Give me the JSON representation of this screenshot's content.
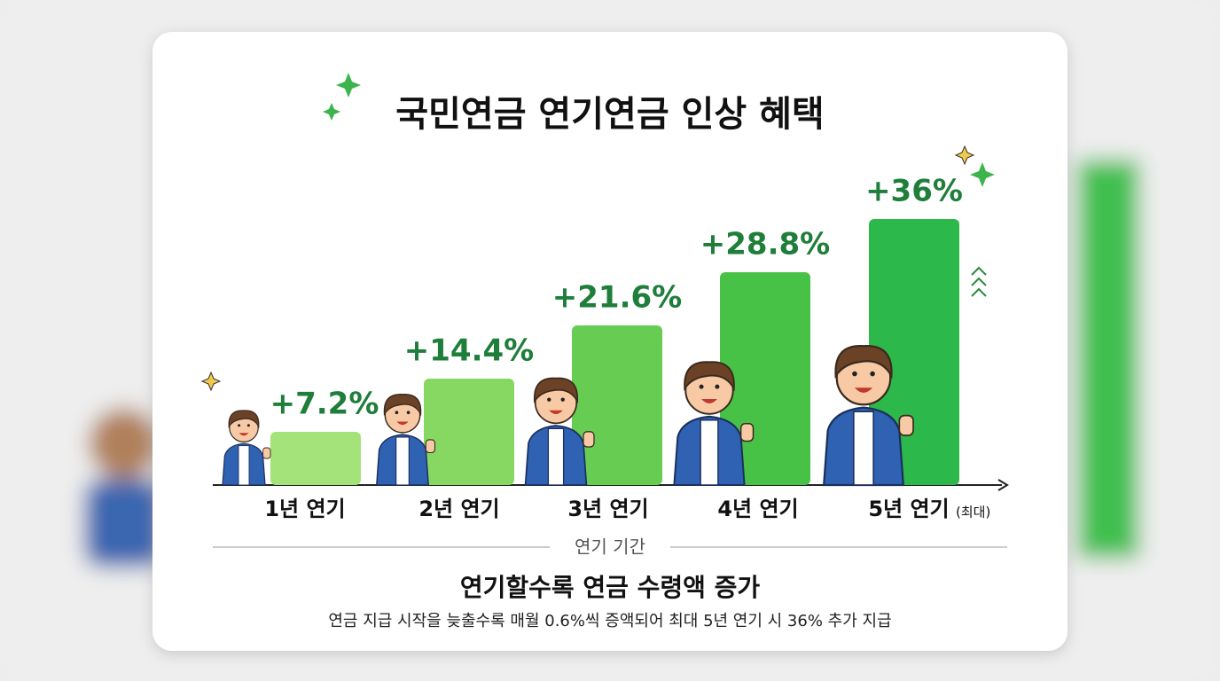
{
  "chart_data": {
    "type": "bar",
    "title": "국민연금 연기연금 인상 혜택",
    "categories": [
      "1년 연기",
      "2년 연기",
      "3년 연기",
      "4년 연기",
      "5년 연기"
    ],
    "category_note": "(최대)",
    "values": [
      7.2,
      14.4,
      21.6,
      28.8,
      36
    ],
    "value_labels": [
      "+7.2%",
      "+14.4%",
      "+21.6%",
      "+28.8%",
      "+36%"
    ],
    "colors": [
      "#a4e27a",
      "#86d862",
      "#67cc52",
      "#48c246",
      "#2cb84a"
    ],
    "label_color": "#1e7e3a",
    "x_label": "연기 기간",
    "subtitle": "연기할수록 연금 수령액 증가",
    "note": "연금 지급 시작을 늦출수록 매월 0.6%씩 증액되어 최대 5년 연기 시 36% 추가 지급"
  }
}
